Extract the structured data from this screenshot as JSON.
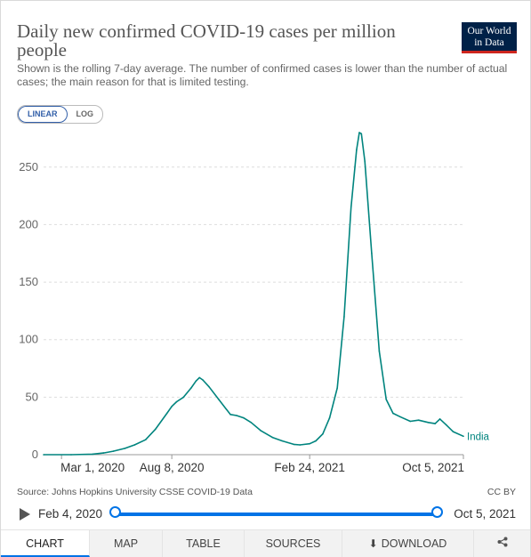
{
  "header": {
    "title": "Daily new confirmed COVID-19 cases per million people",
    "subtitle": "Shown is the rolling 7-day average. The number of confirmed cases is lower than the number of actual cases; the main reason for that is limited testing.",
    "logo_line1": "Our World",
    "logo_line2": "in Data"
  },
  "scale_toggle": {
    "linear_label": "LINEAR",
    "log_label": "LOG",
    "selected": "LINEAR"
  },
  "chart_data": {
    "type": "line",
    "title": "Daily new confirmed COVID-19 cases per million people",
    "xlabel": "",
    "ylabel": "",
    "ylim": [
      0,
      280
    ],
    "xlim": [
      "2020-02-04",
      "2021-10-05"
    ],
    "y_ticks": [
      0,
      50,
      100,
      150,
      200,
      250
    ],
    "x_ticks": [
      "Mar 1, 2020",
      "Aug 8, 2020",
      "Feb 24, 2021",
      "Oct 5, 2021"
    ],
    "x_tick_dates": [
      "2020-03-01",
      "2020-08-08",
      "2021-02-24",
      "2021-10-05"
    ],
    "grid": "horizontal-dashed",
    "series": [
      {
        "name": "India",
        "color": "#00847e",
        "points": [
          [
            "2020-02-04",
            0
          ],
          [
            "2020-03-15",
            0
          ],
          [
            "2020-04-15",
            0.5
          ],
          [
            "2020-05-01",
            1.5
          ],
          [
            "2020-05-15",
            3
          ],
          [
            "2020-06-01",
            5.5
          ],
          [
            "2020-06-15",
            8.5
          ],
          [
            "2020-07-01",
            13
          ],
          [
            "2020-07-15",
            22
          ],
          [
            "2020-08-01",
            36
          ],
          [
            "2020-08-08",
            42
          ],
          [
            "2020-08-15",
            46
          ],
          [
            "2020-08-25",
            50
          ],
          [
            "2020-09-05",
            58
          ],
          [
            "2020-09-12",
            64
          ],
          [
            "2020-09-17",
            67
          ],
          [
            "2020-09-22",
            65
          ],
          [
            "2020-10-01",
            59
          ],
          [
            "2020-10-15",
            48
          ],
          [
            "2020-11-01",
            35
          ],
          [
            "2020-11-10",
            34
          ],
          [
            "2020-11-20",
            32
          ],
          [
            "2020-12-01",
            28
          ],
          [
            "2020-12-15",
            21
          ],
          [
            "2021-01-01",
            15
          ],
          [
            "2021-01-15",
            12
          ],
          [
            "2021-02-01",
            9
          ],
          [
            "2021-02-10",
            8.5
          ],
          [
            "2021-02-24",
            9.5
          ],
          [
            "2021-03-05",
            12
          ],
          [
            "2021-03-15",
            18
          ],
          [
            "2021-03-25",
            32
          ],
          [
            "2021-04-05",
            58
          ],
          [
            "2021-04-15",
            120
          ],
          [
            "2021-04-25",
            215
          ],
          [
            "2021-05-03",
            265
          ],
          [
            "2021-05-07",
            280
          ],
          [
            "2021-05-10",
            279
          ],
          [
            "2021-05-15",
            255
          ],
          [
            "2021-05-25",
            175
          ],
          [
            "2021-06-05",
            90
          ],
          [
            "2021-06-15",
            48
          ],
          [
            "2021-06-25",
            36
          ],
          [
            "2021-07-05",
            33
          ],
          [
            "2021-07-20",
            29
          ],
          [
            "2021-08-01",
            30
          ],
          [
            "2021-08-15",
            28
          ],
          [
            "2021-08-25",
            27
          ],
          [
            "2021-09-01",
            31
          ],
          [
            "2021-09-10",
            26
          ],
          [
            "2021-09-20",
            20
          ],
          [
            "2021-10-05",
            16
          ]
        ]
      }
    ]
  },
  "footer": {
    "source": "Source: Johns Hopkins University CSSE COVID-19 Data",
    "license": "CC BY"
  },
  "timeline": {
    "start_label": "Feb 4, 2020",
    "end_label": "Oct 5, 2021"
  },
  "tabs": [
    {
      "id": "chart",
      "label": "CHART",
      "active": true
    },
    {
      "id": "map",
      "label": "MAP",
      "active": false
    },
    {
      "id": "table",
      "label": "TABLE",
      "active": false
    },
    {
      "id": "sources",
      "label": "SOURCES",
      "active": false
    },
    {
      "id": "download",
      "label": "DOWNLOAD",
      "active": false
    }
  ],
  "colors": {
    "accent": "#0073e6",
    "series": "#00847e",
    "logo_bg": "#002147",
    "logo_bar": "#ce261e"
  }
}
